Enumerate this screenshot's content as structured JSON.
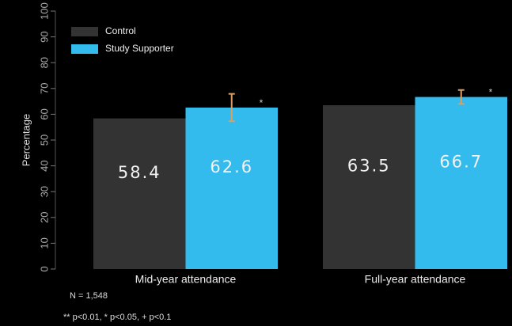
{
  "chart_data": {
    "type": "bar",
    "categories": [
      "Mid-year attendance",
      "Full-year attendance"
    ],
    "series": [
      {
        "name": "Control",
        "color": "#333333",
        "values": [
          58.4,
          63.5
        ]
      },
      {
        "name": "Study Supporter",
        "color": "#33bbee",
        "values": [
          62.6,
          66.7
        ],
        "errors": [
          5.3,
          2.7
        ],
        "error_color": "#d9a066",
        "significance": [
          "*",
          "*"
        ]
      }
    ],
    "y_label": "Percentage",
    "ylim": [
      0,
      100
    ],
    "yticks": [
      0,
      10,
      20,
      30,
      40,
      50,
      60,
      70,
      80,
      90,
      100
    ],
    "legend": "top-left",
    "notes": [
      "N = 1,548",
      "** p<0.01, * p<0.05, + p<0.1"
    ]
  }
}
